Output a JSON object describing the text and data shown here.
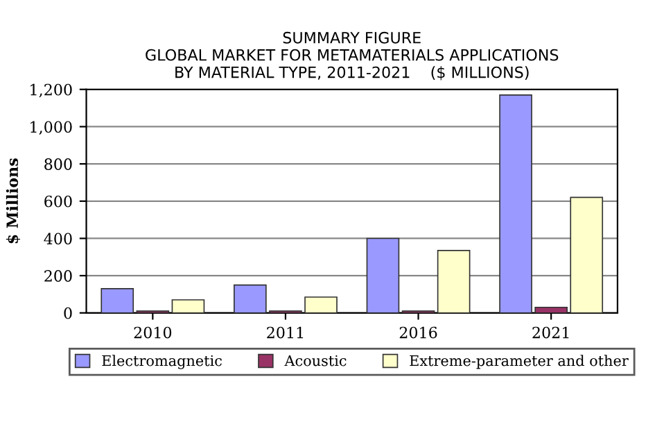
{
  "chart_data": {
    "type": "bar",
    "title": "SUMMARY FIGURE\nGLOBAL MARKET FOR METAMATERIALS APPLICATIONS\nBY MATERIAL TYPE, 2011-2021    ($ MILLIONS)",
    "ylabel": "$ Millions",
    "categories": [
      "2010",
      "2011",
      "2016",
      "2021"
    ],
    "series": [
      {
        "name": "Electromagnetic",
        "color": "#9999ff",
        "values": [
          130,
          150,
          400,
          1170
        ]
      },
      {
        "name": "Acoustic",
        "color": "#993366",
        "values": [
          10,
          10,
          10,
          30
        ]
      },
      {
        "name": "Extreme-parameter and other",
        "color": "#ffffcc",
        "values": [
          70,
          85,
          335,
          620
        ]
      }
    ],
    "ylim": [
      0,
      1200
    ],
    "yticks": [
      0,
      200,
      400,
      600,
      800,
      {
        "value": 1000,
        "label": "1,000"
      },
      {
        "value": 1200,
        "label": "1,200"
      }
    ],
    "grid": "y",
    "legend": "bottom"
  }
}
